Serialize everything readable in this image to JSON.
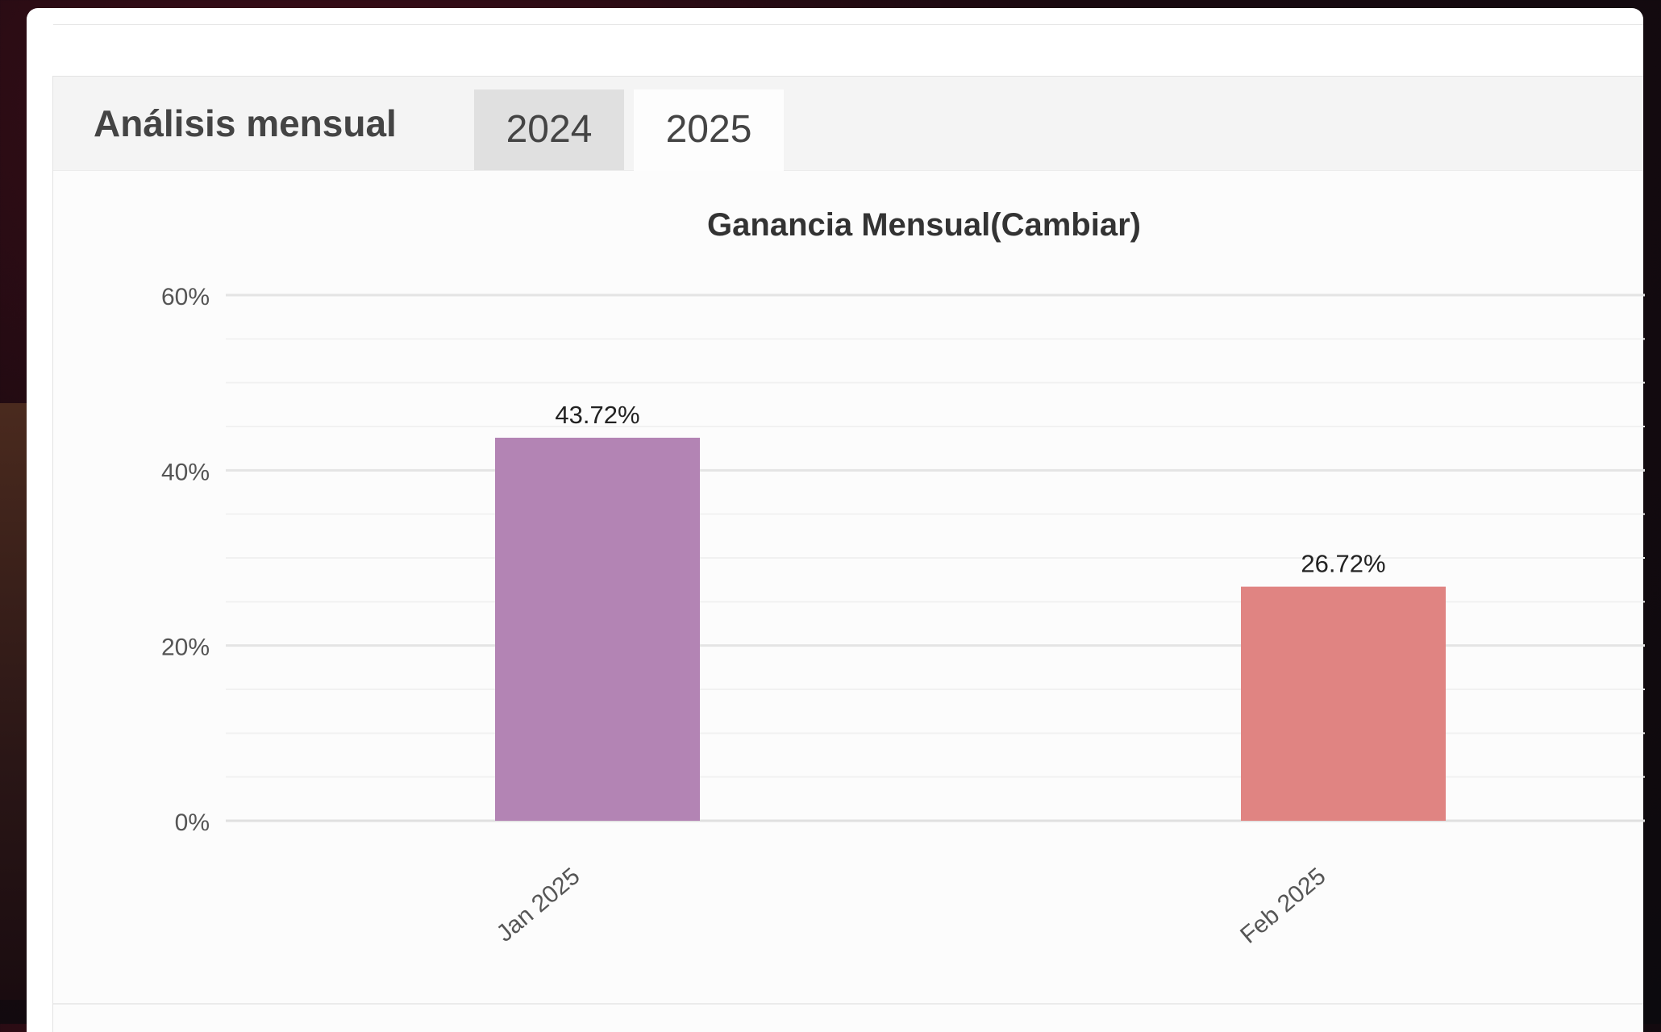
{
  "tabs": {
    "heading": "Análisis mensual",
    "items": [
      {
        "label": "2024",
        "active": false
      },
      {
        "label": "2025",
        "active": true
      }
    ]
  },
  "chart_data": {
    "type": "bar",
    "title": "Ganancia Mensual(Cambiar)",
    "xlabel": "",
    "ylabel": "",
    "categories": [
      "Jan 2025",
      "Feb 2025"
    ],
    "values": [
      43.72,
      26.72
    ],
    "value_labels": [
      "43.72%",
      "26.72%"
    ],
    "colors": [
      "#b384b4",
      "#e08482"
    ],
    "ylim": [
      0,
      60
    ],
    "yticks": [
      0,
      20,
      40,
      60
    ],
    "ytick_labels": [
      "0%",
      "20%",
      "40%",
      "60%"
    ],
    "grid": true,
    "legend": "none"
  }
}
